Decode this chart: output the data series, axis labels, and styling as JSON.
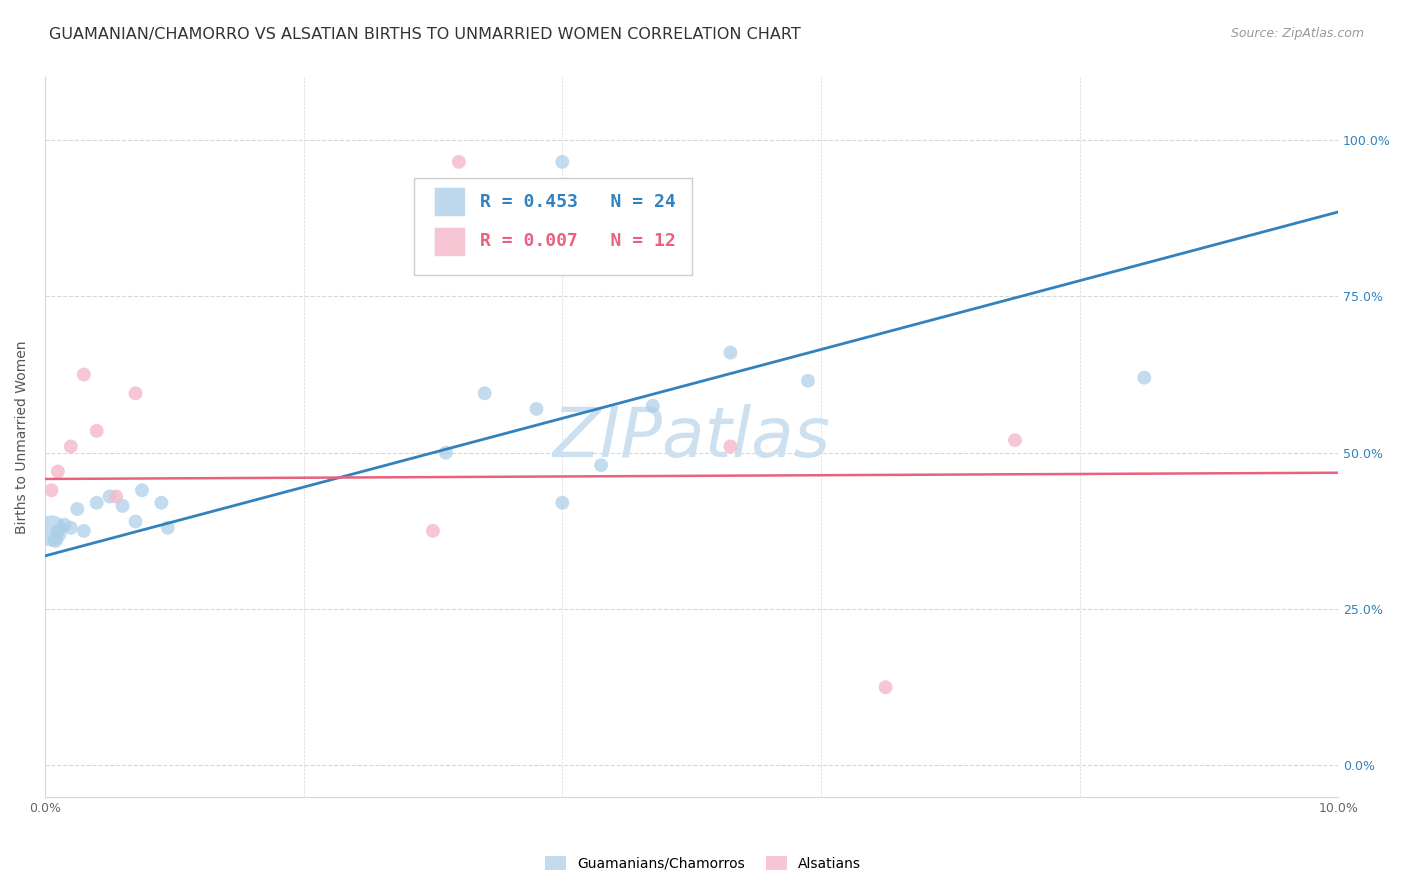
{
  "title": "GUAMANIAN/CHAMORRO VS ALSATIAN BIRTHS TO UNMARRIED WOMEN CORRELATION CHART",
  "source": "Source: ZipAtlas.com",
  "ylabel": "Births to Unmarried Women",
  "xmin": 0.0,
  "xmax": 0.1,
  "ymin": -0.05,
  "ymax": 1.1,
  "guamanian_x": [
    0.0005,
    0.0008,
    0.001,
    0.0015,
    0.002,
    0.0025,
    0.003,
    0.004,
    0.005,
    0.006,
    0.007,
    0.0075,
    0.009,
    0.0095,
    0.031,
    0.034,
    0.038,
    0.043,
    0.047,
    0.04,
    0.053,
    0.059,
    0.085,
    0.04
  ],
  "guamanian_y": [
    0.375,
    0.36,
    0.375,
    0.385,
    0.38,
    0.41,
    0.375,
    0.42,
    0.43,
    0.415,
    0.39,
    0.44,
    0.42,
    0.38,
    0.5,
    0.595,
    0.57,
    0.48,
    0.575,
    0.965,
    0.66,
    0.615,
    0.62,
    0.42
  ],
  "guamanian_sizes": [
    500,
    120,
    100,
    100,
    100,
    100,
    100,
    100,
    100,
    100,
    100,
    100,
    100,
    100,
    100,
    100,
    100,
    100,
    100,
    100,
    100,
    100,
    100,
    100
  ],
  "alsatian_x": [
    0.0005,
    0.001,
    0.002,
    0.003,
    0.004,
    0.0055,
    0.007,
    0.03,
    0.053,
    0.065,
    0.075,
    0.032
  ],
  "alsatian_y": [
    0.44,
    0.47,
    0.51,
    0.625,
    0.535,
    0.43,
    0.595,
    0.375,
    0.51,
    0.125,
    0.52,
    0.965
  ],
  "alsatian_sizes": [
    100,
    100,
    100,
    100,
    100,
    100,
    100,
    100,
    100,
    100,
    100,
    100
  ],
  "blue_line_x": [
    0.0,
    0.1
  ],
  "blue_line_y": [
    0.335,
    0.885
  ],
  "pink_line_x": [
    0.0,
    0.1
  ],
  "pink_line_y": [
    0.458,
    0.468
  ],
  "blue_color": "#a8cce8",
  "pink_color": "#f4b8cb",
  "blue_line_color": "#3182bd",
  "pink_line_color": "#e8627e",
  "grid_color": "#d8d8d8",
  "watermark_color": "#cce0f0",
  "watermark_text": "ZIPatlas",
  "legend_r_blue": "R = 0.453",
  "legend_n_blue": "N = 24",
  "legend_r_pink": "R = 0.007",
  "legend_n_pink": "N = 12",
  "legend_label_blue": "Guamanians/Chamorros",
  "legend_label_pink": "Alsatians",
  "title_fontsize": 11.5,
  "ylabel_fontsize": 10,
  "tick_fontsize": 9,
  "legend_fontsize": 13,
  "source_fontsize": 9,
  "yticks": [
    0.0,
    0.25,
    0.5,
    0.75,
    1.0
  ],
  "ytick_labels_right": [
    "0.0%",
    "25.0%",
    "50.0%",
    "75.0%",
    "100.0%"
  ],
  "xticks": [
    0.0,
    0.02,
    0.04,
    0.06,
    0.08,
    0.1
  ],
  "xtick_labels": [
    "0.0%",
    "",
    "",
    "",
    "",
    "10.0%"
  ]
}
